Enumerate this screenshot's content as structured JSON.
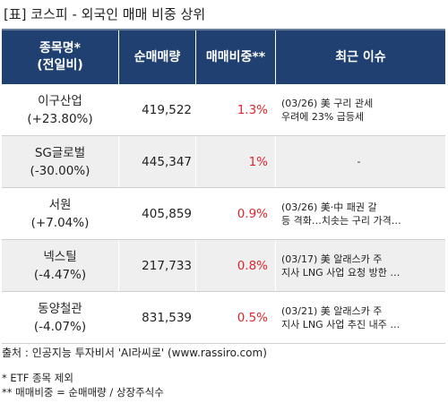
{
  "title": "[표] 코스피 - 외국인 매매 비중 상위",
  "table": {
    "headers": [
      "종목명*\n(전일비)",
      "순매매량",
      "매매비중**",
      "최근 이슈"
    ],
    "rows": [
      {
        "name": "이구산업",
        "change": "(+23.80%)",
        "net_volume": "419,522",
        "ratio": "1.3%",
        "issue": "(03/26) 美 구리 관세\n우려에 23% 급등세"
      },
      {
        "name": "SG글로벌",
        "change": "(-30.00%)",
        "net_volume": "445,347",
        "ratio": "1%",
        "issue": "-"
      },
      {
        "name": "서원",
        "change": "(+7.04%)",
        "net_volume": "405,859",
        "ratio": "0.9%",
        "issue": "(03/26) 美·中 패권 갈\n등 격화…치솟는 구리 가격…"
      },
      {
        "name": "넥스틸",
        "change": "(-4.47%)",
        "net_volume": "217,733",
        "ratio": "0.8%",
        "issue": "(03/17) 美 알래스카 주\n지사 LNG 사업 요청 방한 …"
      },
      {
        "name": "동양철관",
        "change": "(-4.07%)",
        "net_volume": "831,539",
        "ratio": "0.5%",
        "issue": "(03/21) 美 알래스카 주\n지사 LNG 사업 추진 내주 …"
      }
    ]
  },
  "source": "출처 : 인공지능 투자비서 'AI라씨로' (www.rassiro.com)",
  "notes": [
    "* ETF 종목 제외",
    "** 매매비중 = 순매매량 / 상장주식수"
  ],
  "colors": {
    "header_bg": "#1f4070",
    "header_text": "#ffffff",
    "ratio_text": "#e0262d",
    "alt_row_bg": "#efefef"
  }
}
